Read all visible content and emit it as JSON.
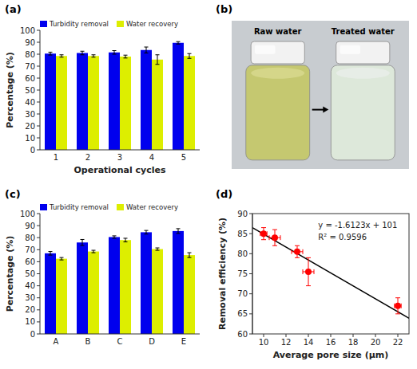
{
  "chart_data": [
    {
      "type": "bar",
      "title": "(a)",
      "xlabel": "Operational cycles",
      "ylabel": "Percentage (%)",
      "categories": [
        "1",
        "2",
        "3",
        "4",
        "5"
      ],
      "series": [
        {
          "name": "Turbidity removal",
          "color": "#0000EE",
          "values": [
            80.5,
            81.0,
            81.5,
            83.5,
            89.5
          ],
          "errors": [
            1.2,
            1.5,
            1.5,
            2.5,
            1.0
          ]
        },
        {
          "name": "Water recovery",
          "color": "#DDEE00",
          "values": [
            78.5,
            78.5,
            78.0,
            75.5,
            78.5
          ],
          "errors": [
            1.0,
            1.0,
            1.2,
            4.0,
            2.0
          ]
        }
      ],
      "ylim": [
        0,
        100
      ],
      "yticks": [
        0,
        10,
        20,
        30,
        40,
        50,
        60,
        70,
        80,
        90,
        100
      ],
      "legend": "upper left"
    },
    {
      "type": "illustration",
      "title": "(b)",
      "annotations": [
        "Raw water",
        "Treated water"
      ]
    },
    {
      "type": "bar",
      "title": "(c)",
      "ylabel": "Percentage (%)",
      "categories": [
        "A",
        "B",
        "C",
        "D",
        "E"
      ],
      "series": [
        {
          "name": "Turbidity removal",
          "color": "#0000EE",
          "values": [
            67.0,
            76.0,
            80.5,
            84.5,
            85.5
          ],
          "errors": [
            1.5,
            2.5,
            1.0,
            1.5,
            2.0
          ]
        },
        {
          "name": "Water recovery",
          "color": "#DDEE00",
          "values": [
            62.5,
            68.5,
            78.0,
            70.5,
            65.5
          ],
          "errors": [
            1.0,
            1.0,
            1.5,
            1.0,
            2.0
          ]
        }
      ],
      "ylim": [
        0,
        100
      ],
      "yticks": [
        0,
        10,
        20,
        30,
        40,
        50,
        60,
        70,
        80,
        90,
        100
      ],
      "legend": "upper left"
    },
    {
      "type": "scatter",
      "title": "(d)",
      "xlabel": "Average pore size (μm)",
      "ylabel": "Removal efficiency (%)",
      "series": [
        {
          "type": "line",
          "color": "#000000",
          "x": [
            9,
            23
          ],
          "values": [
            86.4893,
            63.9171
          ]
        },
        {
          "type": "scatter",
          "color": "#FF0000",
          "marker": "circle",
          "x": [
            10.0,
            11.0,
            13.0,
            14.0,
            22.0
          ],
          "values": [
            85.0,
            84.0,
            80.5,
            75.5,
            67.0
          ],
          "xerr": [
            0.3,
            0.5,
            0.5,
            0.5,
            0.3
          ],
          "yerr": [
            1.5,
            2.0,
            1.5,
            3.5,
            2.0
          ]
        }
      ],
      "xlim": [
        9,
        23
      ],
      "ylim": [
        60,
        90
      ],
      "xticks": [
        10,
        12,
        14,
        16,
        18,
        20,
        22
      ],
      "yticks": [
        60,
        65,
        70,
        75,
        80,
        85,
        90
      ],
      "annotations": [
        "y = -1.6123x + 101",
        "R² = 0.9596"
      ]
    }
  ]
}
